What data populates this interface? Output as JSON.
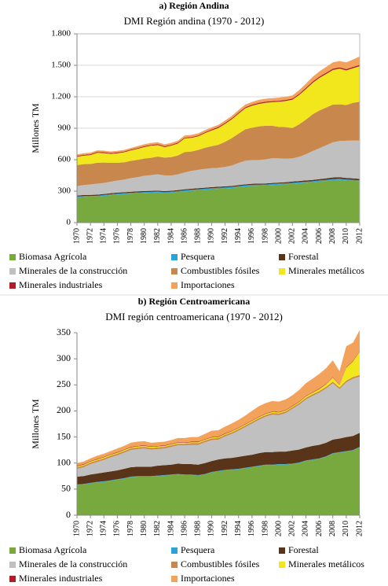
{
  "chart_data": [
    {
      "type": "stacked_area",
      "caption": "a) Región Andina",
      "title": "DMI Región andina (1970 - 2012)",
      "y_label": "Millones TM",
      "grid": true,
      "x": [
        1970,
        1971,
        1972,
        1973,
        1974,
        1975,
        1976,
        1977,
        1978,
        1979,
        1980,
        1981,
        1982,
        1983,
        1984,
        1985,
        1986,
        1987,
        1988,
        1989,
        1990,
        1991,
        1992,
        1993,
        1994,
        1995,
        1996,
        1997,
        1998,
        1999,
        2000,
        2001,
        2002,
        2003,
        2004,
        2005,
        2006,
        2007,
        2008,
        2009,
        2010,
        2011,
        2012
      ],
      "xlim": [
        1970,
        2012
      ],
      "xticks": [
        1970,
        1972,
        1974,
        1976,
        1978,
        1980,
        1982,
        1984,
        1986,
        1988,
        1990,
        1992,
        1994,
        1996,
        1998,
        2000,
        2002,
        2004,
        2006,
        2008,
        2010,
        2012
      ],
      "ylim": [
        0,
        1800
      ],
      "yticks": [
        0,
        300,
        600,
        900,
        {
          "value": 1200,
          "label": "1.200"
        },
        {
          "value": 1500,
          "label": "1.500"
        },
        {
          "value": 1800,
          "label": "1.800"
        }
      ],
      "series": [
        {
          "name": "Biomasa Agrícola",
          "color": "#77a93f",
          "values": [
            240,
            245,
            248,
            250,
            255,
            262,
            268,
            272,
            276,
            280,
            283,
            285,
            287,
            284,
            286,
            292,
            298,
            303,
            308,
            313,
            318,
            322,
            326,
            330,
            338,
            345,
            350,
            352,
            355,
            358,
            362,
            365,
            370,
            375,
            380,
            385,
            392,
            398,
            405,
            408,
            402,
            398,
            395
          ]
        },
        {
          "name": "Pesquera",
          "color": "#2aa3d6",
          "values": [
            8,
            8,
            6,
            6,
            8,
            8,
            8,
            8,
            8,
            8,
            8,
            8,
            8,
            6,
            8,
            8,
            10,
            10,
            10,
            10,
            10,
            10,
            10,
            10,
            10,
            10,
            10,
            10,
            8,
            10,
            10,
            10,
            10,
            10,
            10,
            10,
            10,
            10,
            10,
            10,
            10,
            10,
            8
          ]
        },
        {
          "name": "Forestal",
          "color": "#5a3418",
          "values": [
            10,
            10,
            10,
            10,
            10,
            10,
            10,
            10,
            10,
            10,
            10,
            10,
            10,
            10,
            10,
            10,
            10,
            10,
            10,
            10,
            10,
            10,
            10,
            10,
            10,
            10,
            10,
            10,
            10,
            10,
            10,
            10,
            12,
            12,
            12,
            12,
            12,
            14,
            15,
            15,
            14,
            14,
            14
          ]
        },
        {
          "name": "Minerales de la construcción",
          "color": "#c0c0c0",
          "values": [
            90,
            95,
            100,
            105,
            105,
            110,
            115,
            120,
            130,
            135,
            145,
            150,
            155,
            150,
            145,
            150,
            160,
            170,
            175,
            180,
            180,
            180,
            185,
            195,
            210,
            225,
            225,
            225,
            230,
            235,
            230,
            225,
            220,
            230,
            250,
            275,
            295,
            315,
            335,
            345,
            355,
            360,
            365
          ]
        },
        {
          "name": "Combustibles fósiles",
          "color": "#c8874c",
          "values": [
            200,
            200,
            195,
            200,
            195,
            180,
            170,
            165,
            165,
            165,
            165,
            165,
            170,
            170,
            175,
            180,
            195,
            185,
            190,
            200,
            210,
            220,
            240,
            260,
            280,
            300,
            310,
            320,
            320,
            310,
            300,
            300,
            290,
            310,
            330,
            350,
            360,
            360,
            360,
            350,
            340,
            360,
            370
          ]
        },
        {
          "name": "Minerales metálicos",
          "color": "#f2e61d",
          "values": [
            80,
            80,
            85,
            95,
            90,
            85,
            90,
            95,
            100,
            105,
            110,
            115,
            110,
            100,
            110,
            115,
            130,
            130,
            130,
            140,
            150,
            160,
            170,
            180,
            190,
            200,
            210,
            215,
            220,
            225,
            240,
            250,
            270,
            280,
            290,
            300,
            310,
            320,
            330,
            340,
            330,
            330,
            340
          ]
        },
        {
          "name": "Minerales industriales",
          "color": "#b01c2a",
          "values": [
            8,
            8,
            8,
            8,
            8,
            8,
            8,
            8,
            8,
            8,
            8,
            8,
            8,
            8,
            8,
            8,
            8,
            8,
            8,
            8,
            10,
            10,
            10,
            10,
            10,
            10,
            10,
            10,
            10,
            10,
            10,
            10,
            10,
            10,
            12,
            12,
            12,
            12,
            12,
            12,
            12,
            12,
            12
          ]
        },
        {
          "name": "Importaciones",
          "color": "#f2a25a",
          "values": [
            15,
            15,
            15,
            15,
            15,
            15,
            15,
            15,
            15,
            18,
            18,
            18,
            18,
            18,
            18,
            18,
            20,
            20,
            20,
            20,
            20,
            20,
            22,
            22,
            25,
            25,
            25,
            28,
            28,
            28,
            30,
            30,
            30,
            35,
            40,
            45,
            50,
            55,
            60,
            60,
            65,
            70,
            80
          ]
        }
      ]
    },
    {
      "type": "stacked_area",
      "caption": "b) Región Centroamericana",
      "title": "DMI región centroamericana (1970 - 2012)",
      "y_label": "Millones TM",
      "grid": false,
      "x": [
        1970,
        1971,
        1972,
        1973,
        1974,
        1975,
        1976,
        1977,
        1978,
        1979,
        1980,
        1981,
        1982,
        1983,
        1984,
        1985,
        1986,
        1987,
        1988,
        1989,
        1990,
        1991,
        1992,
        1993,
        1994,
        1995,
        1996,
        1997,
        1998,
        1999,
        2000,
        2001,
        2002,
        2003,
        2004,
        2005,
        2006,
        2007,
        2008,
        2009,
        2010,
        2011,
        2012
      ],
      "xlim": [
        1970,
        2012
      ],
      "xticks": [
        1970,
        1972,
        1974,
        1976,
        1978,
        1980,
        1982,
        1984,
        1986,
        1988,
        1990,
        1992,
        1994,
        1996,
        1998,
        2000,
        2002,
        2004,
        2006,
        2008,
        2010,
        2012
      ],
      "ylim": [
        0,
        350
      ],
      "yticks": [
        0,
        50,
        100,
        150,
        200,
        250,
        300,
        350
      ],
      "series": [
        {
          "name": "Biomasa Agrícola",
          "color": "#77a93f",
          "values": [
            58,
            59,
            61,
            63,
            64,
            66,
            68,
            70,
            73,
            74,
            74,
            74,
            75,
            76,
            77,
            78,
            77,
            77,
            76,
            78,
            82,
            84,
            86,
            87,
            88,
            90,
            92,
            94,
            96,
            96,
            97,
            97,
            98,
            100,
            104,
            106,
            108,
            112,
            118,
            120,
            122,
            124,
            130
          ]
        },
        {
          "name": "Pesquera",
          "color": "#2aa3d6",
          "values": [
            1,
            1,
            1,
            1,
            1,
            1,
            1,
            1,
            1,
            1,
            1,
            1,
            1,
            1,
            1,
            1,
            1,
            1,
            1,
            1,
            1,
            1,
            1,
            1,
            1,
            1,
            1,
            1,
            1,
            1,
            1,
            1,
            1,
            1,
            1,
            1,
            1,
            1,
            1,
            1,
            1,
            1,
            1
          ]
        },
        {
          "name": "Forestal",
          "color": "#5a3418",
          "values": [
            15,
            15,
            16,
            16,
            17,
            17,
            17,
            18,
            18,
            18,
            18,
            18,
            19,
            19,
            19,
            20,
            20,
            20,
            20,
            21,
            21,
            22,
            22,
            22,
            23,
            23,
            23,
            24,
            24,
            24,
            24,
            24,
            25,
            25,
            25,
            26,
            26,
            26,
            26,
            26,
            27,
            27,
            27
          ]
        },
        {
          "name": "Minerales de la construcción",
          "color": "#c0c0c0",
          "values": [
            15,
            17,
            20,
            22,
            24,
            27,
            29,
            31,
            33,
            34,
            35,
            33,
            32,
            32,
            34,
            35,
            36,
            37,
            38,
            40,
            40,
            38,
            42,
            46,
            50,
            55,
            60,
            64,
            68,
            72,
            70,
            74,
            80,
            86,
            92,
            96,
            100,
            104,
            108,
            95,
            105,
            110,
            108
          ]
        },
        {
          "name": "Combustibles fósiles",
          "color": "#c8874c",
          "values": [
            3,
            3,
            3,
            3,
            3,
            3,
            3,
            3,
            3,
            3,
            3,
            3,
            3,
            3,
            3,
            3,
            3,
            3,
            3,
            3,
            3,
            3,
            3,
            3,
            3,
            3,
            3,
            3,
            3,
            3,
            3,
            3,
            3,
            3,
            3,
            3,
            3,
            3,
            3,
            3,
            3,
            3,
            3
          ]
        },
        {
          "name": "Minerales metálicos",
          "color": "#f2e61d",
          "values": [
            2,
            2,
            2,
            2,
            2,
            2,
            2,
            2,
            2,
            2,
            2,
            2,
            2,
            2,
            2,
            2,
            2,
            2,
            2,
            2,
            2,
            2,
            2,
            2,
            2,
            2,
            2,
            2,
            2,
            2,
            2,
            2,
            2,
            2,
            3,
            3,
            4,
            5,
            8,
            5,
            25,
            30,
            45
          ]
        },
        {
          "name": "Minerales industriales",
          "color": "#b01c2a",
          "values": [
            1,
            1,
            1,
            1,
            1,
            1,
            1,
            1,
            1,
            1,
            1,
            1,
            1,
            1,
            1,
            1,
            1,
            1,
            1,
            1,
            1,
            1,
            1,
            1,
            1,
            1,
            1,
            1,
            1,
            1,
            1,
            1,
            1,
            1,
            1,
            1,
            1,
            1,
            1,
            1,
            1,
            1,
            1
          ]
        },
        {
          "name": "Importaciones",
          "color": "#f2a25a",
          "values": [
            5,
            5,
            5,
            6,
            6,
            6,
            7,
            7,
            8,
            8,
            8,
            7,
            7,
            7,
            7,
            8,
            8,
            9,
            9,
            10,
            12,
            12,
            13,
            14,
            15,
            16,
            18,
            20,
            20,
            20,
            20,
            20,
            20,
            22,
            24,
            26,
            28,
            30,
            32,
            25,
            40,
            35,
            40
          ]
        }
      ]
    }
  ]
}
